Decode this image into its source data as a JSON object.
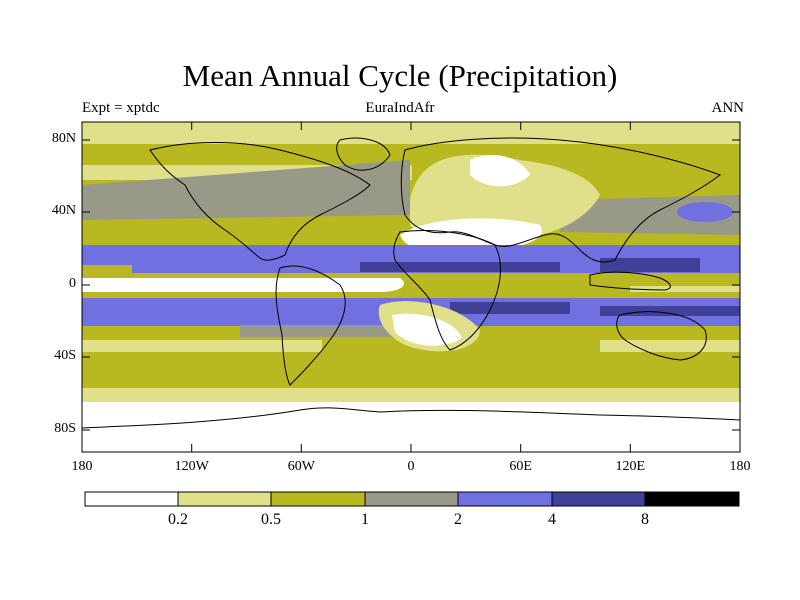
{
  "title": "Mean Annual Cycle (Precipitation)",
  "subtitle_left": "Expt = xptdc",
  "subtitle_center": "EuraIndAfr",
  "subtitle_right": "ANN",
  "lat_labels": [
    "80N",
    "40N",
    "0",
    "40S",
    "80S"
  ],
  "lon_labels": [
    "180",
    "120W",
    "60W",
    "0",
    "60E",
    "120E",
    "180"
  ],
  "colorbar": {
    "labels": [
      "0.2",
      "0.5",
      "1",
      "2",
      "4",
      "8"
    ],
    "colors": [
      "#ffffff",
      "#e0e08a",
      "#b8b820",
      "#999988",
      "#7070e0",
      "#404098",
      "#000000"
    ]
  },
  "map_colors": {
    "level0": "#ffffff",
    "level1": "#e0e08a",
    "level2": "#b8b820",
    "level3": "#999988",
    "level4": "#7070e0",
    "level5": "#404098"
  }
}
